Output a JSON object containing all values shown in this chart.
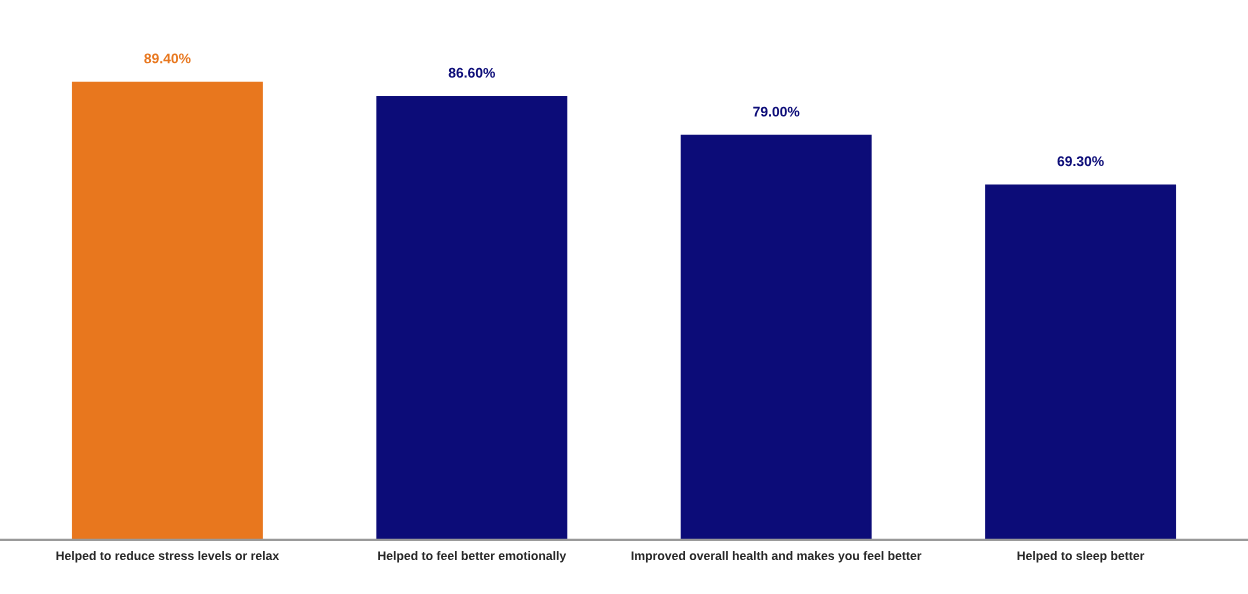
{
  "chart_data": {
    "type": "bar",
    "categories": [
      "Helped to reduce stress levels or relax",
      "Helped to feel better emotionally",
      "Improved overall health and makes you feel better",
      "Helped to sleep better"
    ],
    "values": [
      89.4,
      86.6,
      79.0,
      69.3
    ],
    "colors": [
      "#e8771e",
      "#0c0c78",
      "#0c0c78",
      "#0c0c78"
    ],
    "value_labels": [
      "89.40%",
      "86.60%",
      "79.00%",
      "69.30%"
    ],
    "grid": false,
    "legend": false
  }
}
